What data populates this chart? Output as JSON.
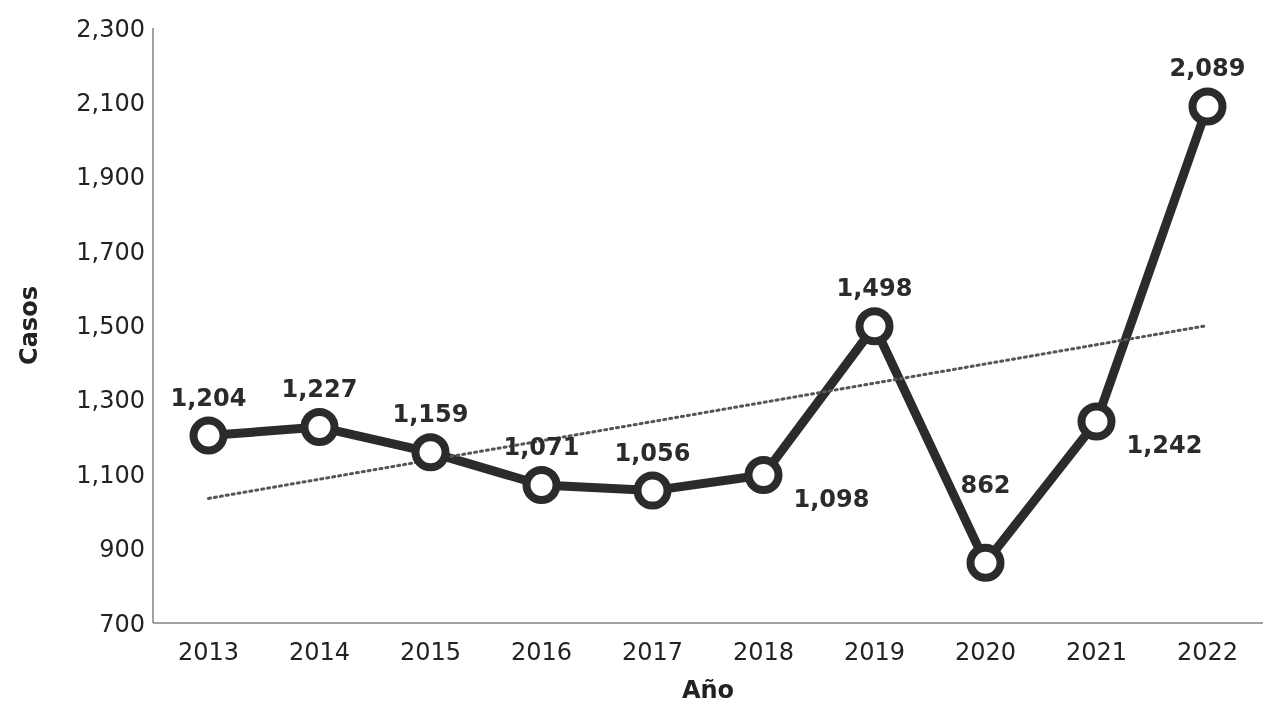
{
  "chart_data": {
    "type": "line",
    "xlabel": "Año",
    "ylabel": "Casos",
    "categories": [
      "2013",
      "2014",
      "2015",
      "2016",
      "2017",
      "2018",
      "2019",
      "2020",
      "2021",
      "2022"
    ],
    "series": [
      {
        "color": "#2b2b2b",
        "values": [
          1204,
          1227,
          1159,
          1071,
          1056,
          1098,
          1498,
          862,
          1242,
          2089
        ],
        "value_labels": [
          "1,204",
          "1,227",
          "1,159",
          "1,071",
          "1,056",
          "1,098",
          "1,498",
          "862",
          "1,242",
          "2,089"
        ],
        "marker": "circle",
        "line_style": "solid"
      },
      {
        "type": "line",
        "color": "#555555",
        "values": [
          1035,
          null,
          null,
          null,
          null,
          null,
          null,
          null,
          null,
          1500
        ],
        "marker": "none",
        "line_style": "dotted"
      }
    ],
    "ylim": [
      700,
      2300
    ],
    "yticks": [
      {
        "value": 700,
        "label": "700"
      },
      {
        "value": 900,
        "label": "900"
      },
      {
        "value": 1100,
        "label": "1,100"
      },
      {
        "value": 1300,
        "label": "1,300"
      },
      {
        "value": 1500,
        "label": "1,500"
      },
      {
        "value": 1700,
        "label": "1,700"
      },
      {
        "value": 1900,
        "label": "1,900"
      },
      {
        "value": 2100,
        "label": "2,100"
      },
      {
        "value": 2300,
        "label": "2,300"
      }
    ],
    "grid": false
  }
}
